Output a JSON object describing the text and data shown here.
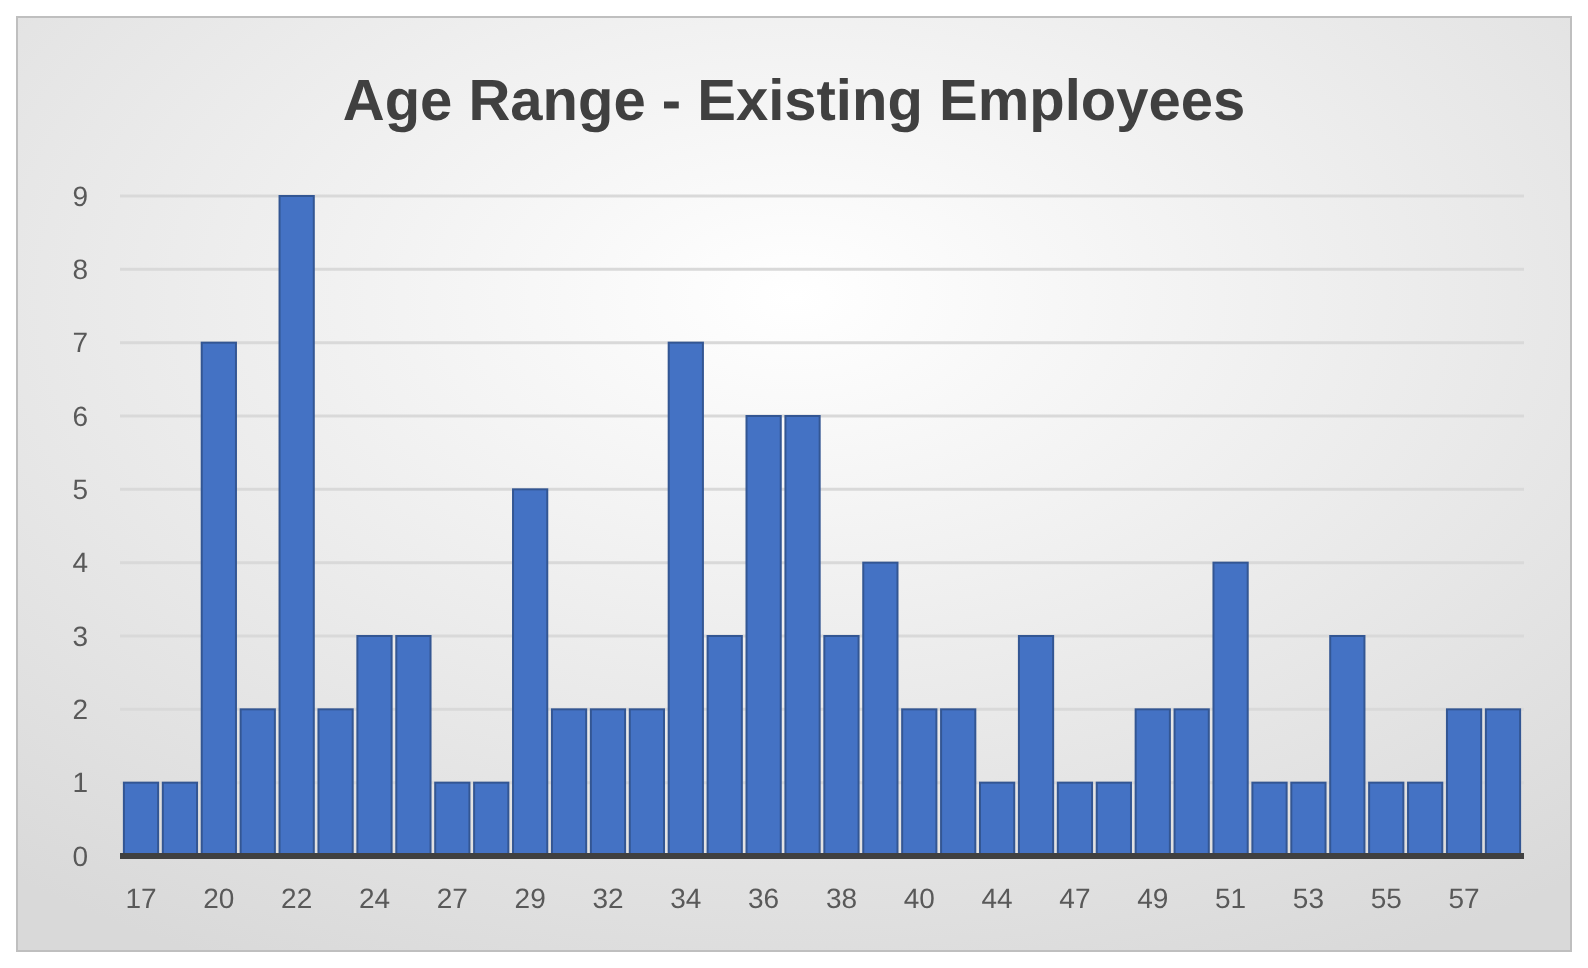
{
  "chart_data": {
    "type": "bar",
    "title": "Age Range - Existing Employees",
    "categories": [
      "17",
      null,
      "20",
      null,
      "22",
      null,
      "24",
      null,
      "27",
      null,
      "29",
      null,
      "32",
      null,
      "34",
      null,
      "36",
      null,
      "38",
      null,
      "40",
      null,
      "44",
      null,
      "47",
      null,
      "49",
      null,
      "51",
      null,
      "53",
      null,
      "55",
      null,
      "57",
      null
    ],
    "values": [
      1,
      1,
      7,
      2,
      9,
      2,
      3,
      3,
      1,
      1,
      5,
      2,
      2,
      2,
      7,
      3,
      6,
      6,
      3,
      4,
      2,
      2,
      1,
      3,
      1,
      1,
      2,
      2,
      4,
      1,
      1,
      3,
      1,
      1,
      2,
      2
    ],
    "color": "#4472c4",
    "ylim": [
      0,
      9
    ],
    "yticks": [
      0,
      1,
      2,
      3,
      4,
      5,
      6,
      7,
      8,
      9
    ],
    "grid": "y"
  }
}
